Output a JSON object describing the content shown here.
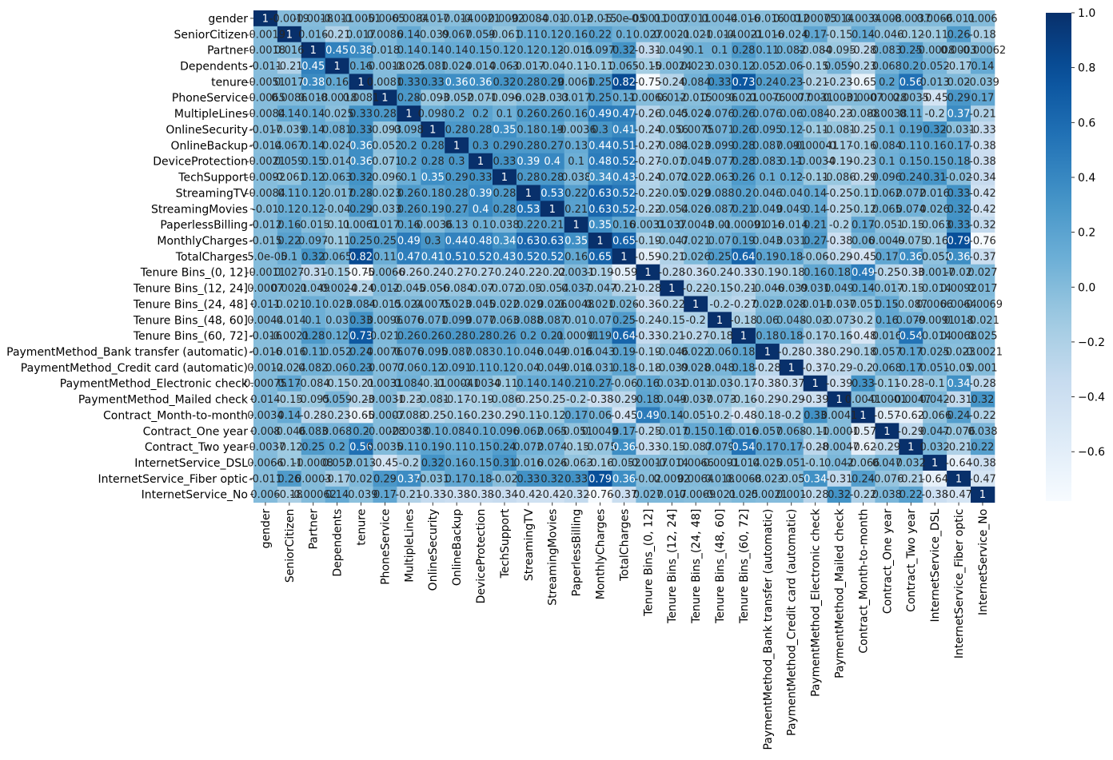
{
  "chart_data": {
    "type": "heatmap",
    "title": "",
    "xlabel": "",
    "ylabel": "",
    "colormap": "Blues",
    "vmin": -0.78,
    "vmax": 1.0,
    "colorbar_ticks": [
      "1.0",
      "0.8",
      "0.6",
      "0.4",
      "0.2",
      "0.0",
      "−0.2",
      "−0.4",
      "−0.6"
    ],
    "colorbar_tick_values": [
      1.0,
      0.8,
      0.6,
      0.4,
      0.2,
      0.0,
      -0.2,
      -0.4,
      -0.6
    ],
    "labels": [
      "gender",
      "SeniorCitizen",
      "Partner",
      "Dependents",
      "tenure",
      "PhoneService",
      "MultipleLines",
      "OnlineSecurity",
      "OnlineBackup",
      "DeviceProtection",
      "TechSupport",
      "StreamingTV",
      "StreamingMovies",
      "PaperlessBilling",
      "MonthlyCharges",
      "TotalCharges",
      "Tenure Bins_(0, 12]",
      "Tenure Bins_(12, 24]",
      "Tenure Bins_(24, 48]",
      "Tenure Bins_(48, 60]",
      "Tenure Bins_(60, 72]",
      "PaymentMethod_Bank transfer (automatic)",
      "PaymentMethod_Credit card (automatic)",
      "PaymentMethod_Electronic check",
      "PaymentMethod_Mailed check",
      "Contract_Month-to-month",
      "Contract_One year",
      "Contract_Two year",
      "InternetService_DSL",
      "InternetService_Fiber optic",
      "InternetService_No"
    ],
    "values": [
      [
        1,
        -0.0019,
        -0.0018,
        -0.011,
        -0.0051,
        -0.0065,
        -0.0084,
        -0.017,
        -0.014,
        -0.0021,
        -0.0092,
        -0.0084,
        -0.01,
        -0.012,
        -0.015,
        -5e-05,
        -0.0011,
        0.0007,
        0.011,
        0.0044,
        -0.016,
        -0.016,
        0.0012,
        0.00075,
        0.014,
        0.0034,
        0.008,
        -0.0037,
        0.0066,
        -0.011,
        0.006
      ],
      [
        -0.0019,
        1,
        0.016,
        -0.21,
        0.017,
        0.0086,
        0.14,
        -0.039,
        0.067,
        0.059,
        -0.061,
        0.11,
        0.12,
        0.16,
        0.22,
        0.1,
        0.027,
        0.0021,
        -0.021,
        -0.014,
        -0.0021,
        -0.016,
        -0.024,
        0.17,
        -0.15,
        0.14,
        -0.046,
        -0.12,
        -0.11,
        0.26,
        -0.18
      ],
      [
        -0.0018,
        0.016,
        1,
        0.45,
        0.38,
        0.018,
        0.14,
        0.14,
        0.14,
        0.15,
        0.12,
        0.12,
        0.12,
        -0.015,
        0.097,
        0.32,
        -0.31,
        -0.049,
        0.1,
        0.1,
        0.28,
        0.11,
        0.082,
        -0.084,
        -0.095,
        -0.28,
        0.083,
        0.25,
        -0.0008,
        0.0003,
        -0.00062
      ],
      [
        -0.011,
        -0.21,
        0.45,
        1,
        0.16,
        -0.0018,
        -0.025,
        0.081,
        0.024,
        0.014,
        0.063,
        -0.017,
        -0.04,
        -0.11,
        -0.11,
        0.065,
        -0.15,
        -0.0024,
        0.023,
        0.03,
        0.12,
        0.052,
        0.06,
        -0.15,
        0.059,
        -0.23,
        0.068,
        0.2,
        0.052,
        -0.17,
        0.14
      ],
      [
        -0.0051,
        0.017,
        0.38,
        0.16,
        1,
        0.0081,
        0.33,
        0.33,
        0.36,
        0.36,
        0.32,
        0.28,
        0.29,
        0.0061,
        0.25,
        0.82,
        -0.75,
        -0.24,
        0.084,
        0.33,
        0.73,
        0.24,
        0.23,
        -0.21,
        -0.23,
        -0.65,
        0.2,
        0.56,
        0.013,
        0.02,
        -0.039
      ],
      [
        -0.0065,
        0.0086,
        0.018,
        -0.0018,
        0.0081,
        1,
        0.28,
        -0.093,
        -0.052,
        -0.071,
        -0.096,
        -0.023,
        -0.033,
        0.017,
        0.25,
        0.11,
        -0.0066,
        0.012,
        -0.015,
        0.0096,
        0.021,
        0.0076,
        -0.0077,
        0.0031,
        -0.0031,
        -0.0007,
        -0.0028,
        0.0035,
        -0.45,
        0.29,
        0.17
      ],
      [
        -0.0084,
        0.14,
        0.14,
        -0.025,
        0.33,
        0.28,
        1,
        0.098,
        0.2,
        0.2,
        0.1,
        0.26,
        0.26,
        0.16,
        0.49,
        0.47,
        -0.26,
        -0.045,
        0.024,
        0.076,
        0.26,
        0.076,
        0.06,
        0.084,
        -0.23,
        -0.088,
        -0.0038,
        0.11,
        -0.2,
        0.37,
        -0.21
      ],
      [
        -0.017,
        -0.039,
        0.14,
        0.081,
        0.33,
        -0.093,
        0.098,
        1,
        0.28,
        0.28,
        0.35,
        0.18,
        0.19,
        -0.0036,
        0.3,
        0.41,
        -0.24,
        -0.056,
        0.0075,
        0.071,
        0.26,
        0.095,
        0.12,
        -0.11,
        -0.081,
        -0.25,
        0.1,
        0.19,
        0.32,
        -0.031,
        -0.33
      ],
      [
        -0.014,
        0.067,
        0.14,
        0.024,
        0.36,
        -0.052,
        0.2,
        0.28,
        1,
        0.3,
        0.29,
        0.28,
        0.27,
        0.13,
        0.44,
        0.51,
        -0.27,
        -0.084,
        0.023,
        0.099,
        0.28,
        0.087,
        0.091,
        -0.00041,
        -0.17,
        -0.16,
        0.084,
        0.11,
        0.16,
        0.17,
        -0.38
      ],
      [
        -0.0021,
        0.059,
        0.15,
        0.014,
        0.36,
        -0.071,
        0.2,
        0.28,
        0.3,
        1,
        0.33,
        0.39,
        0.4,
        0.1,
        0.48,
        0.52,
        -0.27,
        -0.07,
        0.045,
        0.077,
        0.28,
        0.083,
        0.11,
        -0.0034,
        -0.19,
        -0.23,
        0.1,
        0.15,
        0.15,
        0.18,
        -0.38
      ],
      [
        -0.0092,
        -0.061,
        0.12,
        0.063,
        0.32,
        -0.096,
        0.1,
        0.35,
        0.29,
        0.33,
        1,
        0.28,
        0.28,
        0.038,
        0.34,
        0.43,
        -0.24,
        -0.072,
        0.022,
        0.063,
        0.26,
        0.1,
        0.12,
        -0.11,
        -0.086,
        -0.29,
        0.096,
        0.24,
        0.31,
        -0.02,
        -0.34
      ],
      [
        -0.0084,
        0.11,
        0.12,
        -0.017,
        0.28,
        -0.023,
        0.26,
        0.18,
        0.28,
        0.39,
        0.28,
        1,
        0.53,
        0.22,
        0.63,
        0.52,
        -0.22,
        -0.05,
        0.029,
        0.088,
        0.2,
        0.046,
        0.04,
        0.14,
        -0.25,
        -0.11,
        0.062,
        0.072,
        0.016,
        0.33,
        -0.42
      ],
      [
        -0.01,
        0.12,
        0.12,
        -0.04,
        0.29,
        -0.033,
        0.26,
        0.19,
        0.27,
        0.4,
        0.28,
        0.53,
        1,
        0.21,
        0.63,
        0.52,
        -0.22,
        -0.054,
        0.026,
        0.087,
        0.21,
        0.049,
        0.049,
        0.14,
        -0.25,
        -0.12,
        0.065,
        0.074,
        0.026,
        0.32,
        -0.42
      ],
      [
        -0.012,
        0.16,
        -0.015,
        -0.11,
        0.0061,
        0.017,
        0.16,
        -0.0036,
        0.13,
        0.1,
        0.038,
        0.22,
        0.21,
        1,
        0.35,
        0.16,
        0.0031,
        0.037,
        0.0048,
        0.01,
        -0.00091,
        -0.016,
        -0.014,
        0.21,
        -0.2,
        0.17,
        -0.051,
        -0.15,
        -0.063,
        0.33,
        -0.32
      ],
      [
        -0.015,
        0.22,
        0.097,
        -0.11,
        0.25,
        0.25,
        0.49,
        0.3,
        0.44,
        0.48,
        0.34,
        0.63,
        0.63,
        0.35,
        1,
        0.65,
        -0.19,
        -0.047,
        0.021,
        0.07,
        0.19,
        0.043,
        0.031,
        0.27,
        -0.38,
        0.06,
        0.0049,
        -0.075,
        -0.16,
        0.79,
        -0.76
      ],
      [
        -5e-05,
        0.1,
        0.32,
        0.065,
        0.82,
        0.11,
        0.47,
        0.41,
        0.51,
        0.52,
        0.43,
        0.52,
        0.52,
        0.16,
        0.65,
        1,
        -0.59,
        -0.21,
        0.026,
        0.25,
        0.64,
        0.19,
        0.18,
        -0.06,
        -0.29,
        -0.45,
        0.17,
        0.36,
        -0.052,
        0.36,
        -0.37
      ],
      [
        -0.0011,
        0.027,
        -0.31,
        -0.15,
        -0.75,
        -0.0066,
        -0.26,
        -0.24,
        -0.27,
        -0.27,
        -0.24,
        -0.22,
        -0.22,
        0.0031,
        -0.19,
        -0.59,
        1,
        -0.28,
        -0.36,
        -0.24,
        -0.33,
        -0.19,
        -0.18,
        0.16,
        0.18,
        0.49,
        -0.25,
        -0.33,
        -0.0017,
        -0.02,
        0.027
      ],
      [
        0.0007,
        0.0021,
        -0.049,
        -0.0024,
        -0.24,
        0.012,
        -0.045,
        -0.056,
        -0.084,
        -0.07,
        -0.072,
        -0.05,
        -0.054,
        0.037,
        -0.047,
        -0.21,
        -0.28,
        1,
        -0.22,
        -0.15,
        -0.21,
        -0.046,
        -0.039,
        0.031,
        0.049,
        0.14,
        -0.017,
        -0.15,
        -0.014,
        0.0092,
        0.017
      ],
      [
        0.011,
        -0.021,
        0.1,
        0.023,
        0.084,
        -0.015,
        0.024,
        0.0075,
        0.023,
        0.045,
        0.022,
        0.029,
        0.026,
        0.0048,
        0.021,
        0.026,
        -0.36,
        -0.22,
        1,
        -0.2,
        -0.27,
        0.022,
        0.028,
        -0.011,
        -0.037,
        -0.051,
        0.15,
        -0.087,
        0.0066,
        0.0064,
        -0.0069
      ],
      [
        0.0044,
        -0.014,
        0.1,
        0.03,
        0.33,
        0.0096,
        0.076,
        0.071,
        0.099,
        0.077,
        0.063,
        0.088,
        0.087,
        0.01,
        0.07,
        0.25,
        -0.24,
        -0.15,
        -0.2,
        1,
        -0.18,
        0.06,
        0.048,
        -0.03,
        -0.073,
        -0.2,
        0.16,
        0.079,
        -0.0091,
        0.018,
        -0.021
      ],
      [
        -0.016,
        -0.0021,
        0.28,
        0.12,
        0.73,
        0.021,
        0.26,
        0.26,
        0.28,
        0.28,
        0.26,
        0.2,
        0.21,
        -0.00091,
        0.19,
        0.64,
        -0.33,
        -0.21,
        -0.27,
        -0.18,
        1,
        0.18,
        0.18,
        -0.17,
        -0.16,
        -0.48,
        0.016,
        0.54,
        -0.014,
        0.0068,
        0.025
      ],
      [
        -0.016,
        -0.016,
        0.11,
        0.052,
        0.24,
        0.0076,
        0.076,
        0.095,
        0.087,
        0.083,
        0.1,
        0.046,
        0.049,
        -0.016,
        0.043,
        0.19,
        -0.19,
        -0.046,
        0.022,
        0.06,
        0.18,
        1,
        -0.28,
        -0.38,
        -0.29,
        -0.18,
        0.057,
        0.17,
        0.025,
        -0.023,
        -0.0021
      ],
      [
        0.0012,
        -0.024,
        0.082,
        0.06,
        0.23,
        -0.0077,
        0.06,
        0.12,
        0.091,
        0.11,
        0.12,
        0.04,
        0.049,
        -0.014,
        0.031,
        0.18,
        -0.18,
        -0.039,
        0.028,
        0.048,
        0.18,
        -0.28,
        1,
        -0.37,
        -0.29,
        -0.2,
        0.068,
        0.17,
        0.051,
        -0.05,
        0.001
      ],
      [
        0.00075,
        0.17,
        -0.084,
        -0.15,
        -0.21,
        0.0031,
        0.084,
        -0.11,
        -0.00041,
        -0.0034,
        -0.11,
        0.14,
        0.14,
        0.21,
        0.27,
        -0.06,
        0.16,
        0.031,
        -0.011,
        -0.03,
        -0.17,
        -0.38,
        -0.37,
        1,
        -0.39,
        0.33,
        -0.11,
        -0.28,
        -0.1,
        0.34,
        -0.28
      ],
      [
        0.014,
        -0.15,
        -0.095,
        0.059,
        -0.23,
        -0.0031,
        -0.23,
        -0.081,
        -0.17,
        -0.19,
        -0.086,
        -0.25,
        -0.25,
        -0.2,
        -0.38,
        -0.29,
        0.18,
        0.049,
        -0.037,
        -0.073,
        -0.16,
        -0.29,
        -0.29,
        -0.39,
        1,
        0.0041,
        -0.0001,
        -0.0047,
        0.042,
        -0.31,
        0.32
      ],
      [
        0.0034,
        0.14,
        -0.28,
        -0.23,
        -0.65,
        -0.0007,
        -0.088,
        -0.25,
        -0.16,
        -0.23,
        -0.29,
        -0.11,
        -0.12,
        0.17,
        0.06,
        -0.45,
        0.49,
        0.14,
        -0.051,
        -0.2,
        -0.48,
        -0.18,
        -0.2,
        0.33,
        0.0041,
        1,
        -0.57,
        -0.62,
        -0.066,
        0.24,
        -0.22
      ],
      [
        0.008,
        -0.046,
        0.083,
        0.068,
        0.2,
        -0.0028,
        -0.0038,
        0.1,
        0.084,
        0.1,
        0.096,
        0.062,
        0.065,
        -0.051,
        0.0049,
        0.17,
        -0.25,
        -0.017,
        0.15,
        0.16,
        0.016,
        0.057,
        0.068,
        -0.11,
        -0.0001,
        -0.57,
        1,
        -0.29,
        0.047,
        -0.076,
        0.038
      ],
      [
        -0.0037,
        -0.12,
        0.25,
        0.2,
        0.56,
        0.0035,
        0.11,
        0.19,
        0.11,
        0.15,
        0.24,
        0.072,
        0.074,
        -0.15,
        -0.075,
        0.36,
        -0.33,
        -0.15,
        -0.087,
        0.079,
        0.54,
        0.17,
        0.17,
        -0.28,
        -0.0047,
        -0.62,
        -0.29,
        1,
        0.032,
        -0.21,
        0.22
      ],
      [
        0.0066,
        -0.11,
        -0.0008,
        0.052,
        0.013,
        -0.45,
        -0.2,
        0.32,
        0.16,
        0.15,
        0.31,
        0.016,
        0.026,
        -0.063,
        -0.16,
        -0.052,
        -0.0017,
        -0.014,
        0.0066,
        -0.0091,
        -0.014,
        0.025,
        0.051,
        -0.1,
        0.042,
        -0.066,
        0.047,
        0.032,
        1,
        -0.64,
        -0.38
      ],
      [
        -0.011,
        0.26,
        0.0003,
        -0.17,
        0.02,
        0.29,
        0.37,
        -0.031,
        0.17,
        0.18,
        -0.02,
        0.33,
        0.32,
        0.33,
        0.79,
        0.36,
        -0.02,
        0.0092,
        0.0064,
        0.018,
        0.0068,
        -0.023,
        -0.05,
        0.34,
        -0.31,
        0.24,
        -0.076,
        -0.21,
        -0.64,
        1,
        -0.47
      ],
      [
        0.006,
        -0.18,
        -0.00062,
        0.14,
        -0.039,
        0.17,
        -0.21,
        -0.33,
        -0.38,
        -0.38,
        -0.34,
        -0.42,
        -0.42,
        -0.32,
        -0.76,
        -0.37,
        0.027,
        0.017,
        -0.0069,
        -0.021,
        0.025,
        -0.0021,
        0.001,
        -0.28,
        0.32,
        -0.22,
        0.038,
        0.22,
        -0.38,
        -0.47,
        1
      ]
    ],
    "cell_label_precision": 2
  }
}
